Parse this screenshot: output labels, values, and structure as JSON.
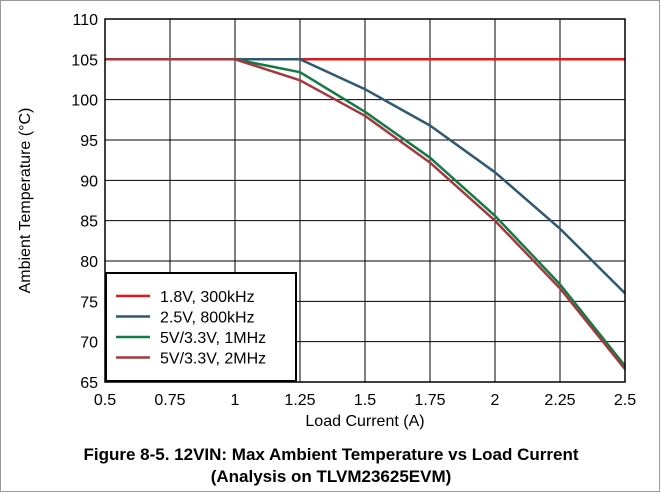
{
  "caption": {
    "line1": "Figure 8-5. 12VIN: Max Ambient Temperature vs Load Current",
    "line2": "(Analysis on TLVM23625EVM)"
  },
  "chart_data": {
    "type": "line",
    "title": "",
    "xlabel": "Load Current (A)",
    "ylabel": "Ambient Temperature (°C)",
    "xlim": [
      0.5,
      2.5
    ],
    "ylim": [
      65,
      110
    ],
    "xticks": [
      0.5,
      0.75,
      1,
      1.25,
      1.5,
      1.75,
      2,
      2.25,
      2.5
    ],
    "xtick_labels": [
      "0.5",
      "0.75",
      "1",
      "1.25",
      "1.5",
      "1.75",
      "2",
      "2.25",
      "2.5"
    ],
    "yticks": [
      65,
      70,
      75,
      80,
      85,
      90,
      95,
      100,
      105,
      110
    ],
    "ytick_labels": [
      "65",
      "70",
      "75",
      "80",
      "85",
      "90",
      "95",
      "100",
      "105",
      "110"
    ],
    "grid": true,
    "legend_position": "bottom-left",
    "series": [
      {
        "name": "1.8V, 300kHz",
        "color": "#e8141b",
        "x": [
          0.5,
          0.75,
          1,
          1.25,
          1.5,
          1.75,
          2,
          2.25,
          2.5
        ],
        "y": [
          105,
          105,
          105,
          105,
          105,
          105,
          105,
          105,
          105
        ]
      },
      {
        "name": "2.5V, 800kHz",
        "color": "#2f5873",
        "x": [
          0.5,
          0.75,
          1,
          1.25,
          1.5,
          1.75,
          2,
          2.25,
          2.5
        ],
        "y": [
          105,
          105,
          105,
          105,
          101.3,
          96.8,
          91,
          84,
          76
        ]
      },
      {
        "name": "5V/3.3V, 1MHz",
        "color": "#117a45",
        "x": [
          0.5,
          0.75,
          1,
          1.25,
          1.5,
          1.75,
          2,
          2.25,
          2.5
        ],
        "y": [
          105,
          105,
          105,
          103.4,
          98.5,
          92.8,
          85.6,
          77.1,
          67
        ]
      },
      {
        "name": "5V/3.3V, 2MHz",
        "color": "#a5373d",
        "x": [
          0.5,
          0.75,
          1,
          1.25,
          1.5,
          1.75,
          2,
          2.25,
          2.5
        ],
        "y": [
          105,
          105,
          105,
          102.4,
          98,
          92.2,
          85,
          76.6,
          66.6
        ]
      }
    ]
  }
}
